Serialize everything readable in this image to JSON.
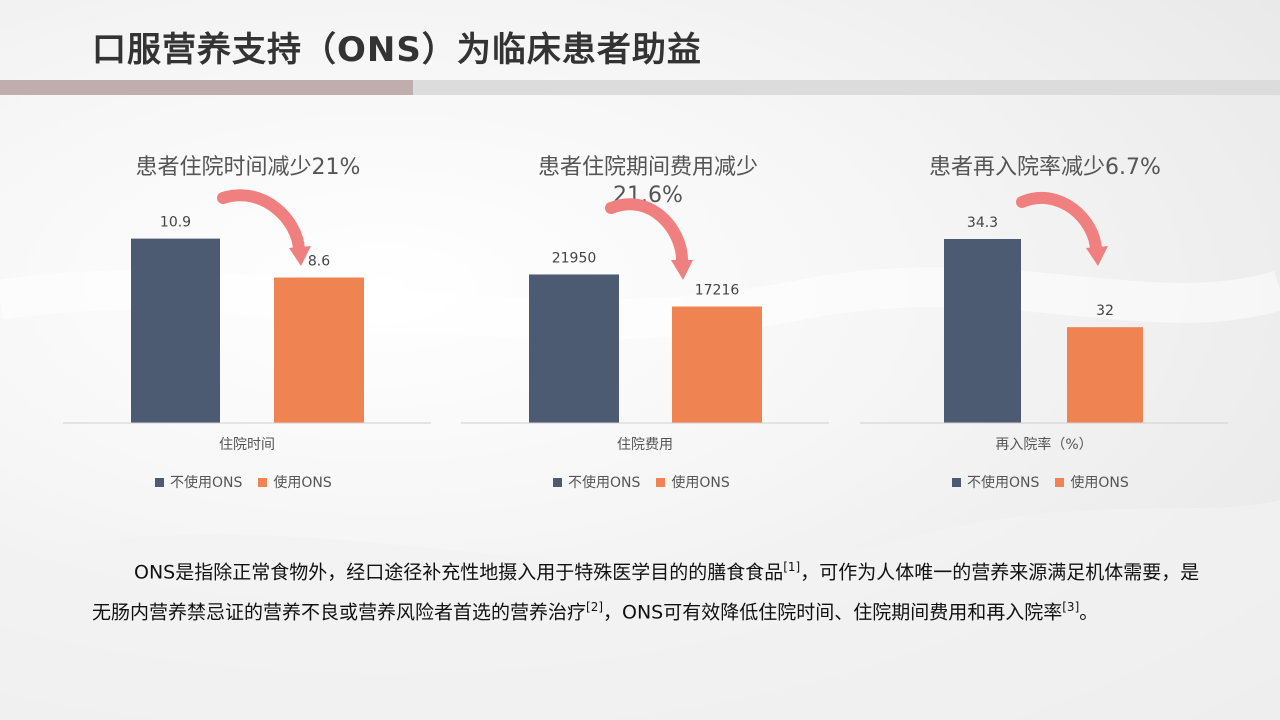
{
  "title": "口服营养支持（ONS）为临床患者助益",
  "colors": {
    "no_ons": "#4d5b72",
    "ons": "#ef8352",
    "arrow": "#f08080",
    "title_bar": "#c0aeaf"
  },
  "legend": {
    "no_ons": "不使用ONS",
    "ons": "使用ONS"
  },
  "chart_data": [
    {
      "type": "bar",
      "title": "患者住院时间减少21%",
      "xlabel": "住院时间",
      "categories": [
        "住院时间"
      ],
      "series": [
        {
          "name": "不使用ONS",
          "values": [
            10.9
          ]
        },
        {
          "name": "使用ONS",
          "values": [
            8.6
          ]
        }
      ],
      "ylim": [
        0,
        12
      ],
      "grid": false,
      "legend_position": "bottom"
    },
    {
      "type": "bar",
      "title": "患者住院期间费用减少21.6%",
      "xlabel": "住院费用",
      "categories": [
        "住院费用"
      ],
      "series": [
        {
          "name": "不使用ONS",
          "values": [
            21950
          ]
        },
        {
          "name": "使用ONS",
          "values": [
            17216
          ]
        }
      ],
      "ylim": [
        0,
        30000
      ],
      "grid": false,
      "legend_position": "bottom"
    },
    {
      "type": "bar",
      "title": "患者再入院率减少6.7%",
      "xlabel": "再入院率（%）",
      "categories": [
        "再入院率（%）"
      ],
      "series": [
        {
          "name": "不使用ONS",
          "values": [
            34.3
          ]
        },
        {
          "name": "使用ONS",
          "values": [
            32.0
          ]
        }
      ],
      "ylim": [
        29.5,
        34.9
      ],
      "grid": false,
      "legend_position": "bottom"
    }
  ],
  "body": {
    "p1": "ONS是指除正常食物外，经口途径补充性地摄入用于特殊医学目的的膳食食品",
    "ref1": "[1]",
    "p2": "，可作为人体唯一的营养来源满足机体需要，是无肠内营养禁忌证的营养不良或营养风险者首选的营养治疗",
    "ref2": "[2]",
    "p3": "，ONS可有效降低住院时间、住院期间费用和再入院率",
    "ref3": "[3]",
    "p4": "。"
  }
}
